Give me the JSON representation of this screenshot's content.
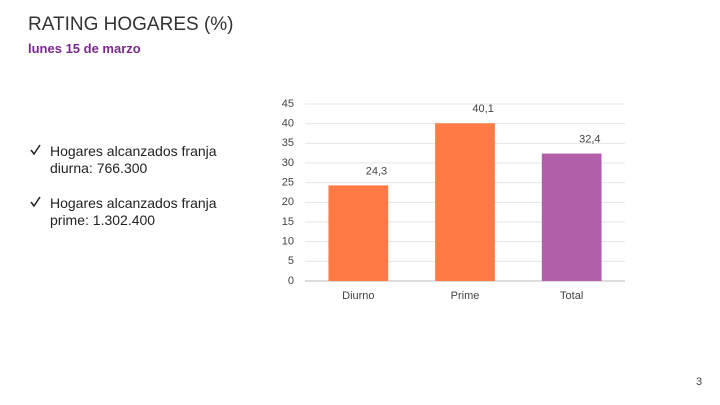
{
  "header": {
    "title": "RATING HOGARES (%)",
    "subtitle": "lunes 15 de marzo"
  },
  "bullets": [
    "Hogares alcanzados franja diurna: 766.300",
    "Hogares alcanzados franja prime: 1.302.400"
  ],
  "page_number": "3",
  "chart_data": {
    "type": "bar",
    "categories": [
      "Diurno",
      "Prime",
      "Total"
    ],
    "values": [
      24.3,
      40.1,
      32.4
    ],
    "value_labels": [
      "24,3",
      "40,1",
      "32,4"
    ],
    "colors": [
      "#ff7a45",
      "#ff7a45",
      "#b05fa8"
    ],
    "ylim": [
      0,
      45
    ],
    "yticks": [
      0,
      5,
      10,
      15,
      20,
      25,
      30,
      35,
      40,
      45
    ],
    "grid": true
  }
}
